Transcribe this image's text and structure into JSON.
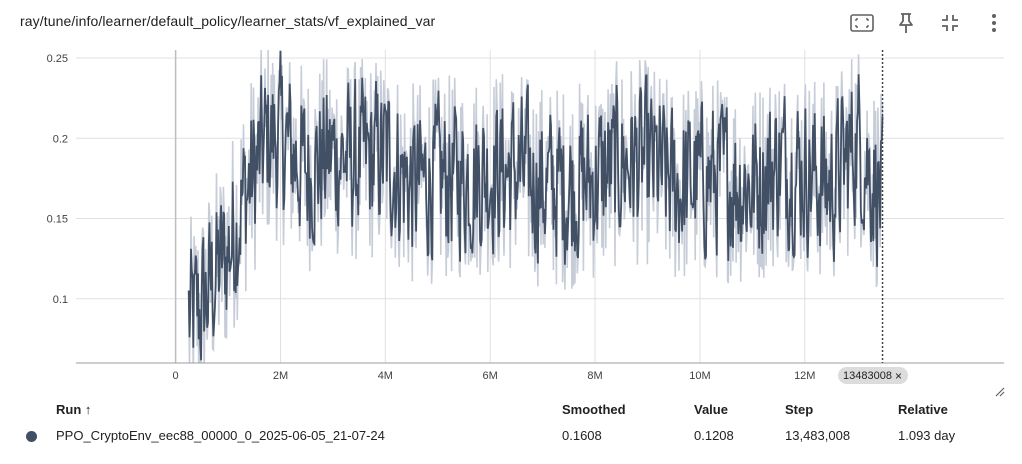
{
  "card": {
    "title": "ray/tune/info/learner/default_policy/learner_stats/vf_explained_var"
  },
  "toolbar": {
    "icons": [
      "fit-to-domain-icon",
      "pin-icon",
      "collapse-icon",
      "more-vert-icon"
    ]
  },
  "colors": {
    "series": "#425066",
    "series_raw": "#c7cdd8",
    "grid": "#e0e0e0",
    "axis": "#9e9e9e",
    "badge": "#dcdcdc"
  },
  "chart_data": {
    "type": "line",
    "title": "ray/tune/info/learner/default_policy/learner_stats/vf_explained_var",
    "xlabel": "",
    "ylabel": "",
    "x_tick_labels": [
      "0",
      "2M",
      "4M",
      "6M",
      "8M",
      "10M",
      "12M"
    ],
    "x_ticks": [
      0,
      2000000,
      4000000,
      6000000,
      8000000,
      10000000,
      12000000
    ],
    "y_tick_labels": [
      "0.1",
      "0.15",
      "0.2",
      "0.25"
    ],
    "y_ticks": [
      0.1,
      0.15,
      0.2,
      0.25
    ],
    "xlim": [
      -1900000,
      15800000
    ],
    "ylim": [
      0.06,
      0.255
    ],
    "grid": true,
    "cursor_step": 13483008,
    "cursor_label": "13483008",
    "series": [
      {
        "name": "PPO_CryptoEnv_eec88_00000_0_2025-06-05_21-07-24",
        "smoothing": "smoothed over raw",
        "x": [
          250000,
          500000,
          750000,
          1000000,
          1250000,
          1500000,
          1750000,
          2000000,
          2500000,
          3000000,
          3500000,
          4000000,
          4500000,
          5000000,
          5500000,
          6000000,
          6500000,
          7000000,
          7500000,
          8000000,
          8500000,
          9000000,
          9500000,
          10000000,
          10500000,
          11000000,
          11500000,
          12000000,
          12500000,
          13000000,
          13483008
        ],
        "y": [
          0.085,
          0.095,
          0.115,
          0.13,
          0.16,
          0.18,
          0.2,
          0.2,
          0.18,
          0.19,
          0.185,
          0.19,
          0.17,
          0.175,
          0.175,
          0.18,
          0.18,
          0.17,
          0.17,
          0.175,
          0.185,
          0.185,
          0.17,
          0.175,
          0.175,
          0.17,
          0.185,
          0.18,
          0.17,
          0.2,
          0.1608
        ]
      }
    ]
  },
  "cursor_badge": {
    "label": "13483008",
    "close": "×"
  },
  "table": {
    "headers": {
      "run": "Run ↑",
      "smoothed": "Smoothed",
      "value": "Value",
      "step": "Step",
      "relative": "Relative"
    },
    "rows": [
      {
        "run": "PPO_CryptoEnv_eec88_00000_0_2025-06-05_21-07-24",
        "smoothed": "0.1608",
        "value": "0.1208",
        "step": "13,483,008",
        "relative": "1.093 day",
        "color": "#425066"
      }
    ]
  }
}
